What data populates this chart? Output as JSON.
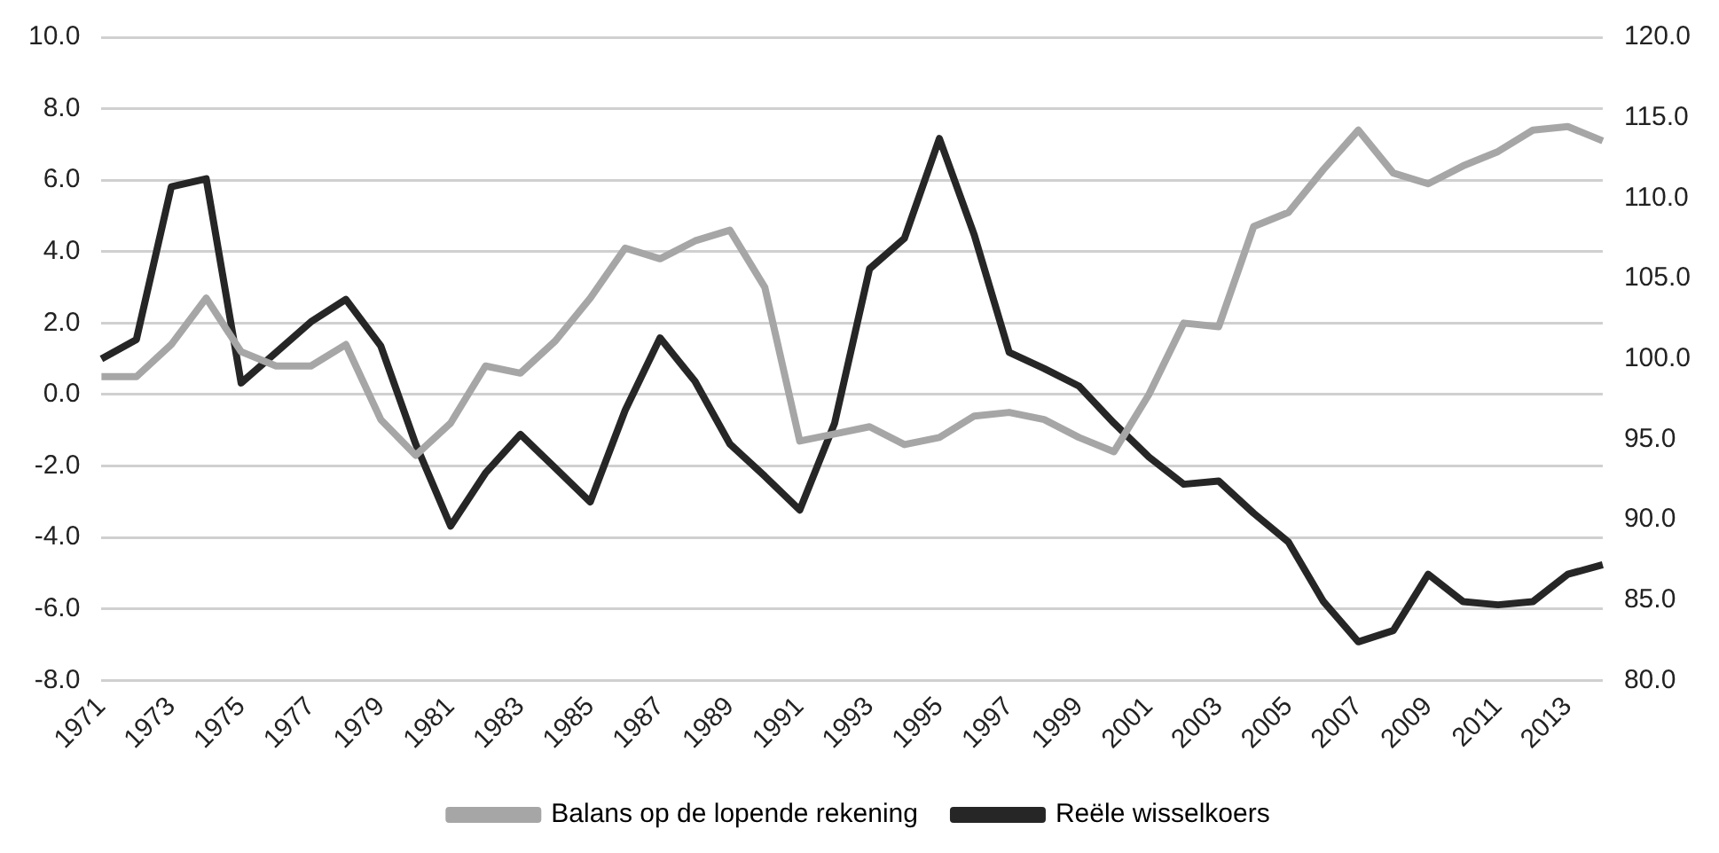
{
  "chart_data": {
    "type": "line",
    "categories": [
      "1971",
      null,
      "1973",
      null,
      "1975",
      null,
      "1977",
      null,
      "1979",
      null,
      "1981",
      null,
      "1983",
      null,
      "1985",
      null,
      "1987",
      null,
      "1989",
      null,
      "1991",
      null,
      "1993",
      null,
      "1995",
      null,
      "1997",
      null,
      "1999",
      null,
      "2001",
      null,
      "2003",
      null,
      "2005",
      null,
      "2007",
      null,
      "2009",
      null,
      "2011",
      null,
      "2013",
      null
    ],
    "series": [
      {
        "name": "Balans op de lopende rekening",
        "color": "#a6a6a6",
        "values": [
          0.5,
          0.5,
          1.4,
          2.7,
          1.2,
          0.8,
          0.8,
          1.4,
          -0.7,
          -1.7,
          -0.8,
          0.8,
          0.6,
          1.5,
          2.7,
          4.1,
          3.8,
          4.3,
          4.6,
          3.0,
          -1.3,
          -1.1,
          -0.9,
          -1.4,
          -1.2,
          -0.6,
          -0.5,
          -0.7,
          -1.2,
          -1.6,
          0.0,
          2.0,
          1.9,
          4.7,
          5.1,
          6.3,
          7.4,
          6.2,
          5.9,
          6.4,
          6.8,
          7.4,
          7.5,
          7.1
        ]
      },
      {
        "name": "Reële wisselkoers",
        "color": "#262626",
        "axis": "y2",
        "values": [
          100.0,
          101.2,
          110.7,
          111.2,
          98.5,
          100.4,
          102.3,
          103.7,
          100.8,
          94.7,
          89.6,
          92.9,
          95.3,
          93.2,
          91.1,
          96.8,
          101.3,
          98.6,
          94.7,
          92.7,
          90.6,
          96.0,
          105.6,
          107.5,
          113.7,
          107.7,
          100.4,
          99.4,
          98.3,
          96.0,
          93.9,
          92.2,
          92.4,
          90.4,
          88.6,
          84.9,
          82.4,
          83.1,
          86.6,
          84.9,
          84.7,
          84.9,
          86.6,
          87.2
        ]
      }
    ],
    "ylim": [
      -8,
      10
    ],
    "yticks": [
      {
        "value": -8,
        "label": "-8.0"
      },
      {
        "value": -6,
        "label": "-6.0"
      },
      {
        "value": -4,
        "label": "-4.0"
      },
      {
        "value": -2,
        "label": "-2.0"
      },
      {
        "value": 0,
        "label": "0.0"
      },
      {
        "value": 2,
        "label": "2.0"
      },
      {
        "value": 4,
        "label": "4.0"
      },
      {
        "value": 6,
        "label": "6.0"
      },
      {
        "value": 8,
        "label": "8.0"
      },
      {
        "value": 10,
        "label": "10.0"
      }
    ],
    "y2lim": [
      80,
      120
    ],
    "y2ticks": [
      {
        "value": 80,
        "label": "80.0"
      },
      {
        "value": 85,
        "label": "85.0"
      },
      {
        "value": 90,
        "label": "90.0"
      },
      {
        "value": 95,
        "label": "95.0"
      },
      {
        "value": 100,
        "label": "100.0"
      },
      {
        "value": 105,
        "label": "105.0"
      },
      {
        "value": 110,
        "label": "110.0"
      },
      {
        "value": 115,
        "label": "115.0"
      },
      {
        "value": 120,
        "label": "120.0"
      }
    ],
    "grid": "y",
    "legend": "bottom"
  }
}
